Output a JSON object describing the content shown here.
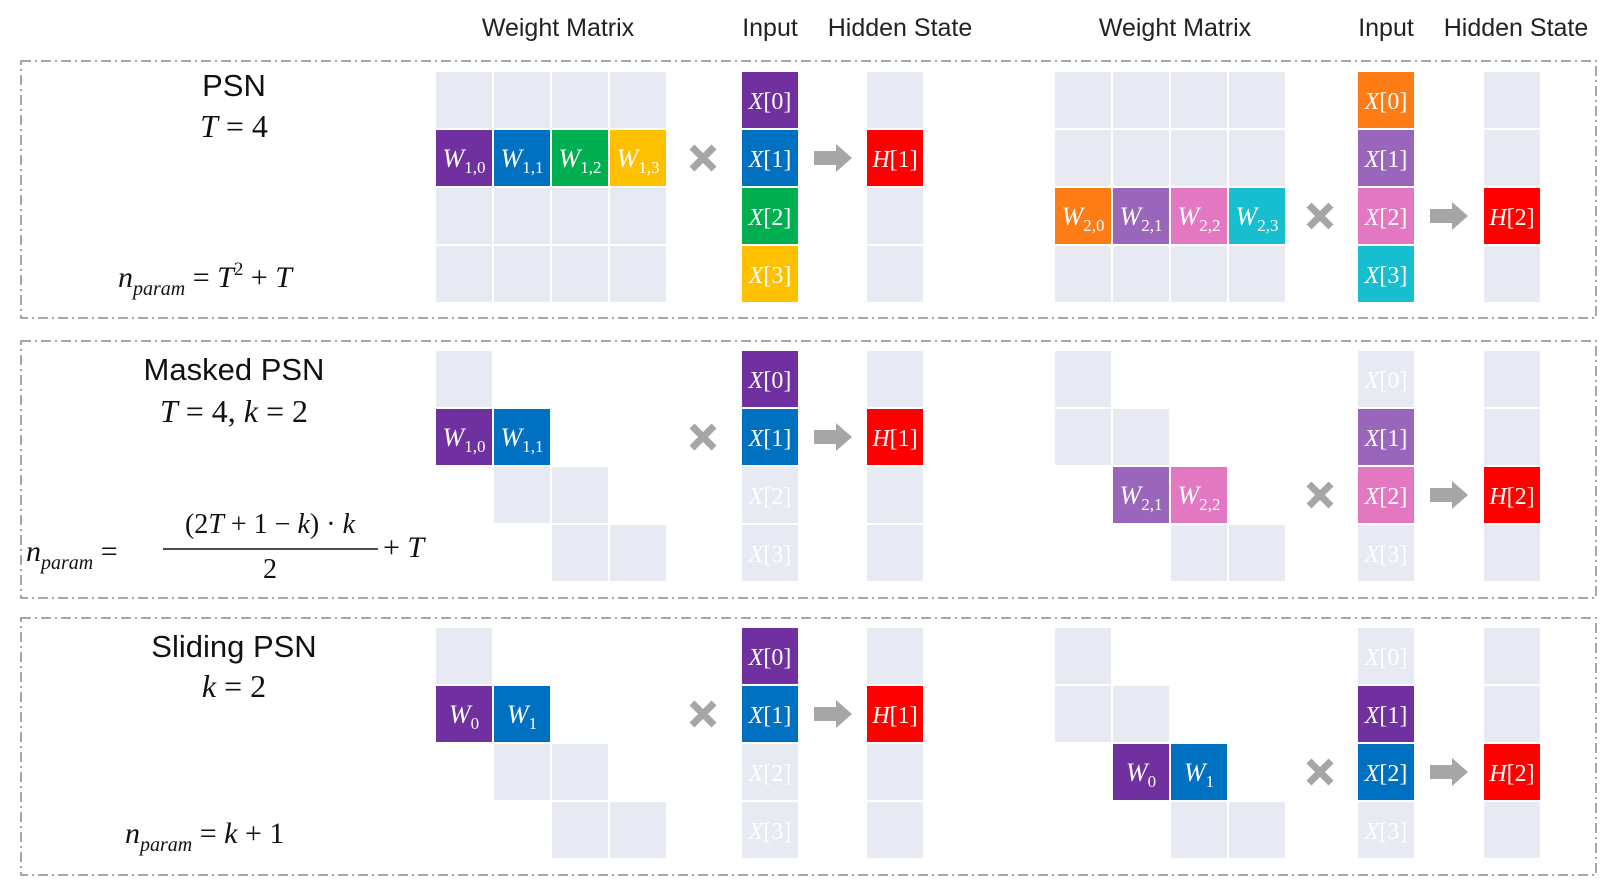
{
  "headers": {
    "weight_matrix": "Weight Matrix",
    "input": "Input",
    "hidden_state": "Hidden State"
  },
  "colors": {
    "empty_cell": "#e8eaf3",
    "purple": "#7030a0",
    "blue": "#0070c0",
    "green": "#00b050",
    "yellow": "#ffc000",
    "orange": "#fd7c15",
    "lavender": "#9966bb",
    "pink": "#e377c2",
    "cyan": "#17becf",
    "red": "#ff0000",
    "operator": "#a6a6a6",
    "faded_text": "#ffffff",
    "border": "#888888"
  },
  "icons": {
    "multiply": "times-icon",
    "arrow": "right-arrow-icon"
  },
  "panels": [
    {
      "name": "psn",
      "title": "PSN",
      "params_line": "T = 4",
      "formula": "n_param = T^2 + T",
      "left": {
        "weights": [
          {
            "row": 1,
            "col": 0,
            "label": "W",
            "sub": "1,0",
            "color": "purple"
          },
          {
            "row": 1,
            "col": 1,
            "label": "W",
            "sub": "1,1",
            "color": "blue"
          },
          {
            "row": 1,
            "col": 2,
            "label": "W",
            "sub": "1,2",
            "color": "green"
          },
          {
            "row": 1,
            "col": 3,
            "label": "W",
            "sub": "1,3",
            "color": "yellow"
          }
        ],
        "empty_cells": [
          [
            0,
            0
          ],
          [
            0,
            1
          ],
          [
            0,
            2
          ],
          [
            0,
            3
          ],
          [
            2,
            0
          ],
          [
            2,
            1
          ],
          [
            2,
            2
          ],
          [
            2,
            3
          ],
          [
            3,
            0
          ],
          [
            3,
            1
          ],
          [
            3,
            2
          ],
          [
            3,
            3
          ]
        ],
        "inputs": [
          {
            "label": "X[0]",
            "color": "purple"
          },
          {
            "label": "X[1]",
            "color": "blue"
          },
          {
            "label": "X[2]",
            "color": "green"
          },
          {
            "label": "X[3]",
            "color": "yellow"
          }
        ],
        "hidden": {
          "row": 1,
          "label": "H[1]"
        }
      },
      "right": {
        "weights": [
          {
            "row": 2,
            "col": 0,
            "label": "W",
            "sub": "2,0",
            "color": "orange"
          },
          {
            "row": 2,
            "col": 1,
            "label": "W",
            "sub": "2,1",
            "color": "lavender"
          },
          {
            "row": 2,
            "col": 2,
            "label": "W",
            "sub": "2,2",
            "color": "pink"
          },
          {
            "row": 2,
            "col": 3,
            "label": "W",
            "sub": "2,3",
            "color": "cyan"
          }
        ],
        "empty_cells": [
          [
            0,
            0
          ],
          [
            0,
            1
          ],
          [
            0,
            2
          ],
          [
            0,
            3
          ],
          [
            1,
            0
          ],
          [
            1,
            1
          ],
          [
            1,
            2
          ],
          [
            1,
            3
          ],
          [
            3,
            0
          ],
          [
            3,
            1
          ],
          [
            3,
            2
          ],
          [
            3,
            3
          ]
        ],
        "inputs": [
          {
            "label": "X[0]",
            "color": "orange"
          },
          {
            "label": "X[1]",
            "color": "lavender"
          },
          {
            "label": "X[2]",
            "color": "pink"
          },
          {
            "label": "X[3]",
            "color": "cyan"
          }
        ],
        "hidden": {
          "row": 2,
          "label": "H[2]"
        }
      }
    },
    {
      "name": "masked-psn",
      "title": "Masked PSN",
      "params_line": "T = 4, k = 2",
      "formula": "n_param = ((2T + 1 − k) · k) / 2 + T",
      "left": {
        "weights": [
          {
            "row": 1,
            "col": 0,
            "label": "W",
            "sub": "1,0",
            "color": "purple"
          },
          {
            "row": 1,
            "col": 1,
            "label": "W",
            "sub": "1,1",
            "color": "blue"
          }
        ],
        "empty_cells": [
          [
            0,
            0
          ],
          [
            2,
            1
          ],
          [
            2,
            2
          ],
          [
            3,
            2
          ],
          [
            3,
            3
          ]
        ],
        "inputs": [
          {
            "label": "X[0]",
            "color": "purple"
          },
          {
            "label": "X[1]",
            "color": "blue"
          },
          {
            "label": "X[2]",
            "color": "faded"
          },
          {
            "label": "X[3]",
            "color": "faded"
          }
        ],
        "hidden": {
          "row": 1,
          "label": "H[1]"
        }
      },
      "right": {
        "weights": [
          {
            "row": 2,
            "col": 1,
            "label": "W",
            "sub": "2,1",
            "color": "lavender"
          },
          {
            "row": 2,
            "col": 2,
            "label": "W",
            "sub": "2,2",
            "color": "pink"
          }
        ],
        "empty_cells": [
          [
            0,
            0
          ],
          [
            1,
            0
          ],
          [
            1,
            1
          ],
          [
            3,
            2
          ],
          [
            3,
            3
          ]
        ],
        "inputs": [
          {
            "label": "X[0]",
            "color": "faded"
          },
          {
            "label": "X[1]",
            "color": "lavender"
          },
          {
            "label": "X[2]",
            "color": "pink"
          },
          {
            "label": "X[3]",
            "color": "faded"
          }
        ],
        "hidden": {
          "row": 2,
          "label": "H[2]"
        }
      }
    },
    {
      "name": "sliding-psn",
      "title": "Sliding PSN",
      "params_line": "k = 2",
      "formula": "n_param = k + 1",
      "left": {
        "weights": [
          {
            "row": 1,
            "col": 0,
            "label": "W",
            "sub": "0",
            "color": "purple"
          },
          {
            "row": 1,
            "col": 1,
            "label": "W",
            "sub": "1",
            "color": "blue"
          }
        ],
        "empty_cells": [
          [
            0,
            0
          ],
          [
            2,
            1
          ],
          [
            2,
            2
          ],
          [
            3,
            2
          ],
          [
            3,
            3
          ]
        ],
        "inputs": [
          {
            "label": "X[0]",
            "color": "purple"
          },
          {
            "label": "X[1]",
            "color": "blue"
          },
          {
            "label": "X[2]",
            "color": "faded"
          },
          {
            "label": "X[3]",
            "color": "faded"
          }
        ],
        "hidden": {
          "row": 1,
          "label": "H[1]"
        }
      },
      "right": {
        "weights": [
          {
            "row": 2,
            "col": 1,
            "label": "W",
            "sub": "0",
            "color": "purple"
          },
          {
            "row": 2,
            "col": 2,
            "label": "W",
            "sub": "1",
            "color": "blue"
          }
        ],
        "empty_cells": [
          [
            0,
            0
          ],
          [
            1,
            0
          ],
          [
            1,
            1
          ],
          [
            3,
            2
          ],
          [
            3,
            3
          ]
        ],
        "inputs": [
          {
            "label": "X[0]",
            "color": "faded"
          },
          {
            "label": "X[1]",
            "color": "purple"
          },
          {
            "label": "X[2]",
            "color": "blue"
          },
          {
            "label": "X[3]",
            "color": "faded"
          }
        ],
        "hidden": {
          "row": 2,
          "label": "H[2]"
        }
      }
    }
  ]
}
